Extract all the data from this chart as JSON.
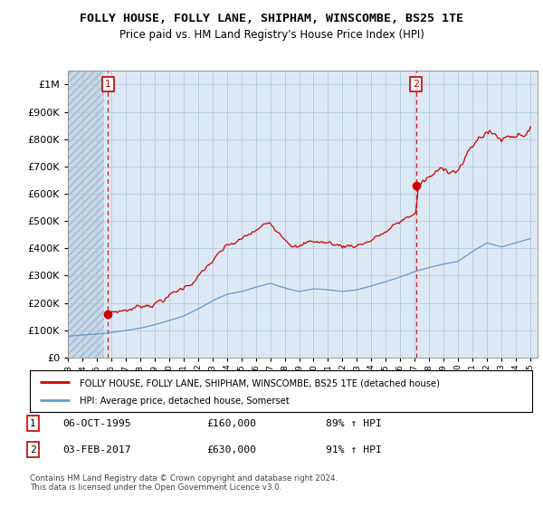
{
  "title": "FOLLY HOUSE, FOLLY LANE, SHIPHAM, WINSCOMBE, BS25 1TE",
  "subtitle": "Price paid vs. HM Land Registry's House Price Index (HPI)",
  "legend_line1": "FOLLY HOUSE, FOLLY LANE, SHIPHAM, WINSCOMBE, BS25 1TE (detached house)",
  "legend_line2": "HPI: Average price, detached house, Somerset",
  "transaction1_date": "06-OCT-1995",
  "transaction1_price": "£160,000",
  "transaction1_hpi": "89% ↑ HPI",
  "transaction2_date": "03-FEB-2017",
  "transaction2_price": "£630,000",
  "transaction2_hpi": "91% ↑ HPI",
  "footer": "Contains HM Land Registry data © Crown copyright and database right 2024.\nThis data is licensed under the Open Government Licence v3.0.",
  "ylim": [
    0,
    1050000
  ],
  "yticks": [
    0,
    100000,
    200000,
    300000,
    400000,
    500000,
    600000,
    700000,
    800000,
    900000,
    1000000
  ],
  "ytick_labels": [
    "£0",
    "£100K",
    "£200K",
    "£300K",
    "£400K",
    "£500K",
    "£600K",
    "£700K",
    "£800K",
    "£900K",
    "£1M"
  ],
  "hpi_color": "#6699cc",
  "sold_color": "#cc0000",
  "marker1_x": 1995.77,
  "marker1_y": 160000,
  "marker2_x": 2017.09,
  "marker2_y": 630000,
  "chart_bg_color": "#dce9f5",
  "hatch_bg_color": "#c8d8e8",
  "background_color": "#ffffff",
  "grid_color": "#aec4d8",
  "xlim_start": 1993.0,
  "xlim_end": 2025.5,
  "hatch_end": 1995.5
}
